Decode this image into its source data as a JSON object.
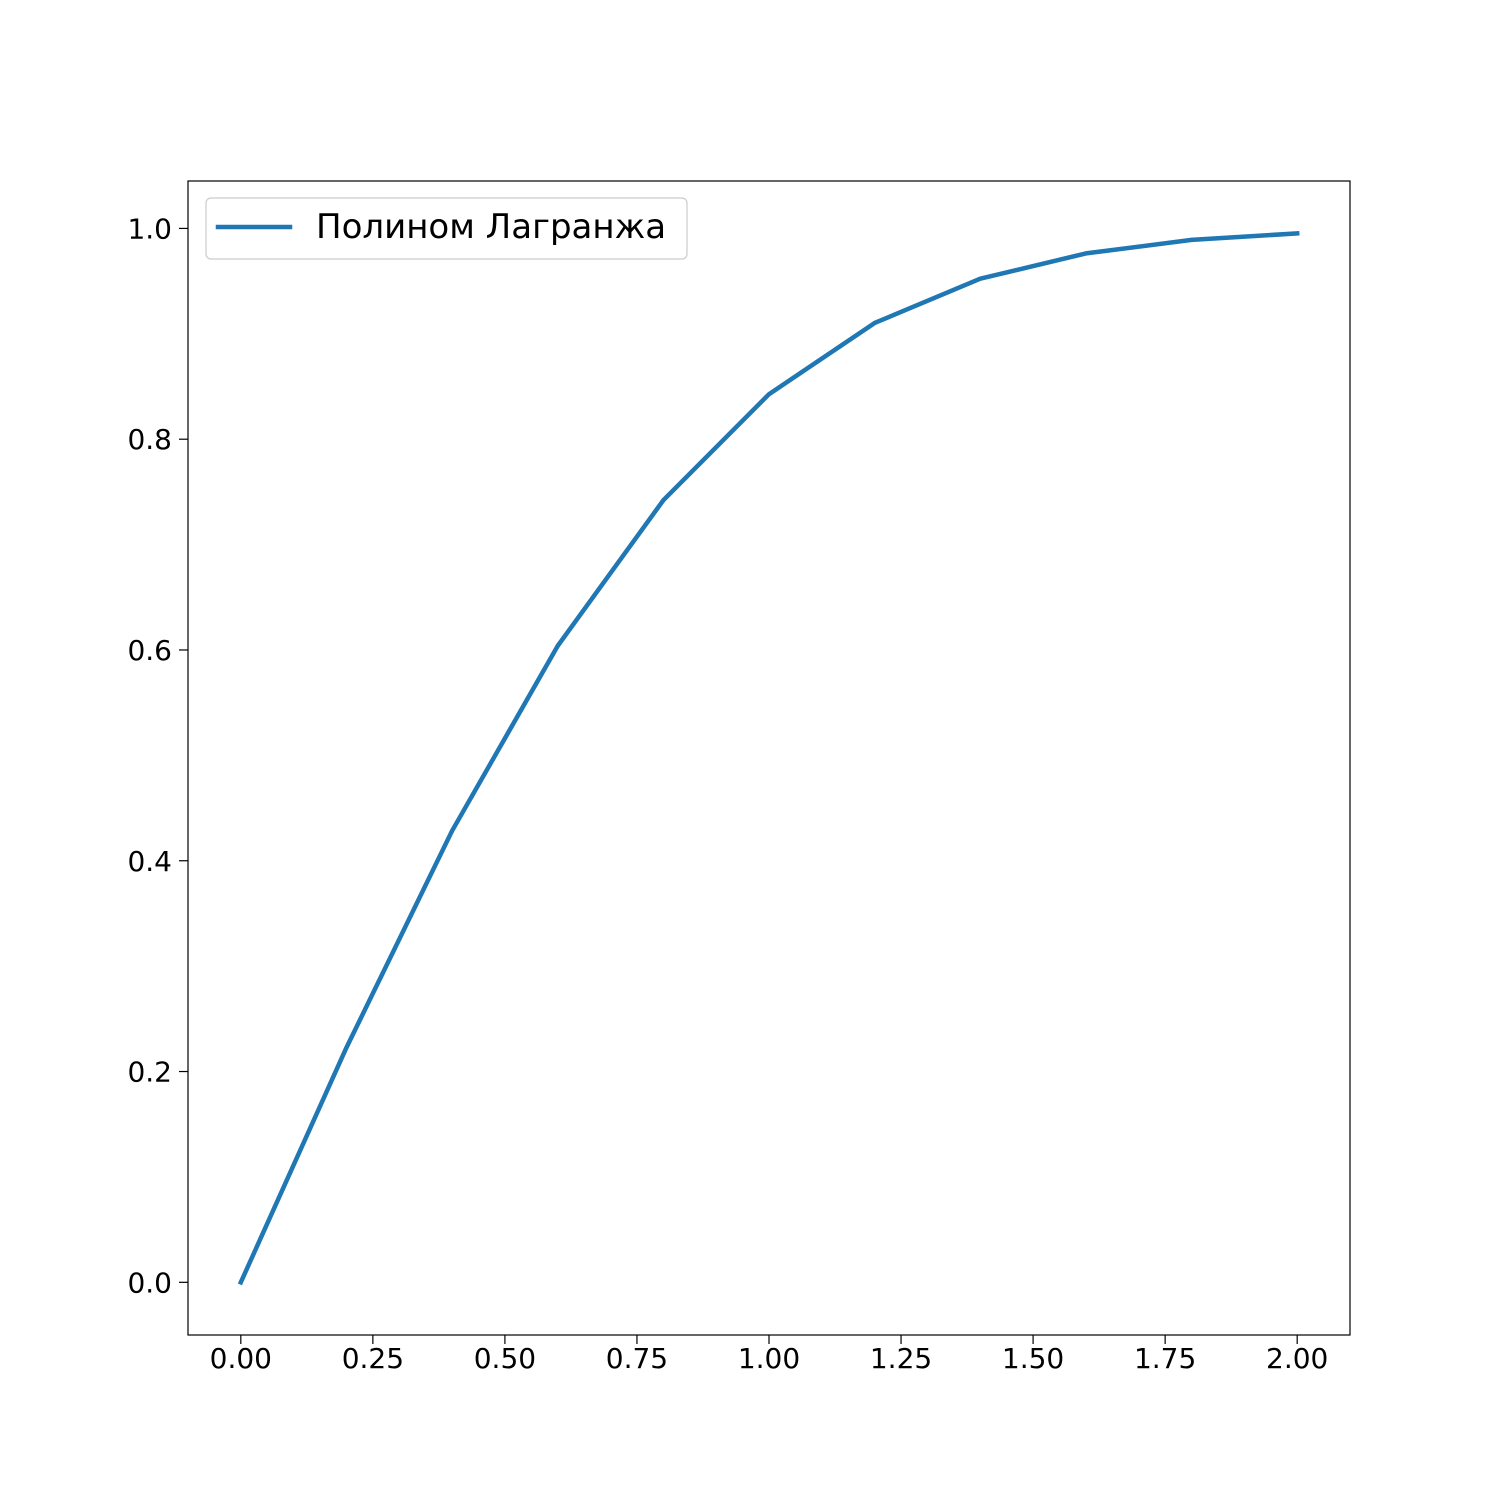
{
  "chart_data": {
    "type": "line",
    "title": "",
    "xlabel": "",
    "ylabel": "",
    "xlim": [
      -0.1,
      2.1
    ],
    "ylim": [
      -0.05,
      1.045
    ],
    "grid": false,
    "legend_placement": "top-left",
    "x_ticks": [
      "0.00",
      "0.25",
      "0.50",
      "0.75",
      "1.00",
      "1.25",
      "1.50",
      "1.75",
      "2.00"
    ],
    "y_ticks": [
      "0.0",
      "0.2",
      "0.4",
      "0.6",
      "0.8",
      "1.0"
    ],
    "series": [
      {
        "name": "Полином Лагранжа",
        "color": "#1f77b4",
        "x": [
          0.0,
          0.2,
          0.4,
          0.6,
          0.8,
          1.0,
          1.2,
          1.4,
          1.6,
          1.8,
          2.0
        ],
        "y": [
          0.0,
          0.2227,
          0.4284,
          0.6039,
          0.7421,
          0.8427,
          0.9103,
          0.9523,
          0.9763,
          0.9891,
          0.9953
        ]
      }
    ]
  }
}
